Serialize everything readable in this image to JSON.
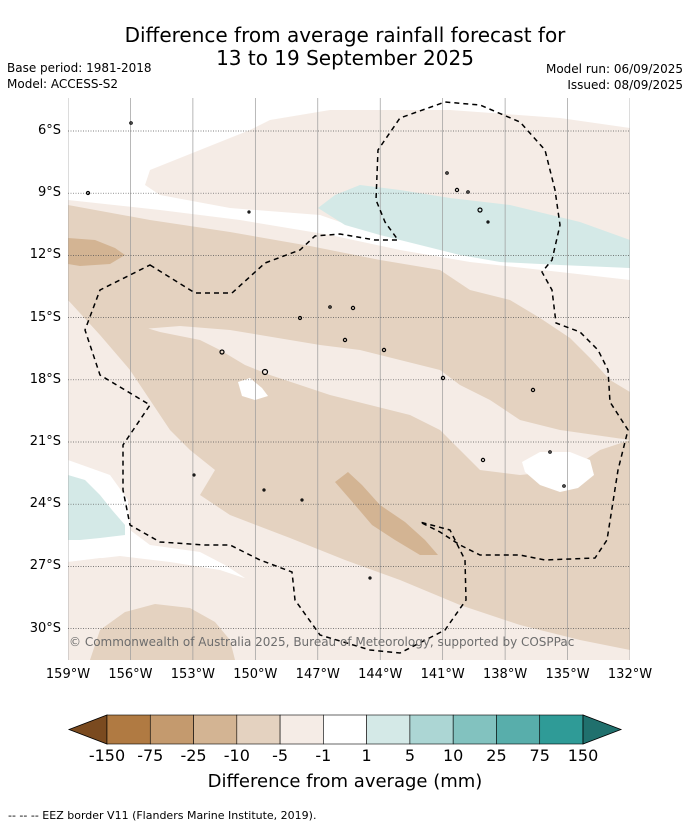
{
  "title_line1": "Difference from average rainfall forecast for",
  "title_line2": "13 to 19 September 2025",
  "base_period": "Base period: 1981-2018",
  "model": "Model: ACCESS-S2",
  "model_run": "Model run: 06/09/2025",
  "issued": "Issued: 08/09/2025",
  "copyright": "© Commonwealth of Australia 2025, Bureau of Meteorology, supported by COSPPac",
  "latitudes": [
    "6°S",
    "9°S",
    "12°S",
    "15°S",
    "18°S",
    "21°S",
    "24°S",
    "27°S",
    "30°S"
  ],
  "longitudes": [
    "159°W",
    "156°W",
    "153°W",
    "150°W",
    "147°W",
    "144°W",
    "141°W",
    "138°W",
    "135°W",
    "132°W"
  ],
  "colorbar": {
    "ticks": [
      "-150",
      "-75",
      "-25",
      "-10",
      "-5",
      "-1",
      "1",
      "5",
      "10",
      "25",
      "75",
      "150"
    ],
    "label": "Difference from average (mm)",
    "colors": [
      "#7a4a1f",
      "#b07a42",
      "#c49a6e",
      "#d3b493",
      "#e4d2c0",
      "#f5ece6",
      "#ffffff",
      "#d4e9e7",
      "#acd6d4",
      "#82c2bf",
      "#58aeab",
      "#2f9b97",
      "#20706d"
    ]
  },
  "footer": "-- -- -- EEZ border V11 (Flanders Marine Institute, 2019)."
}
